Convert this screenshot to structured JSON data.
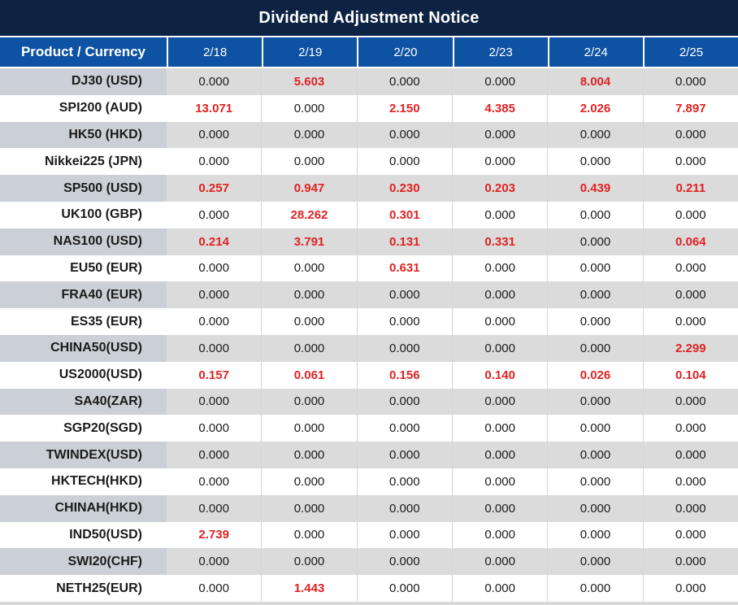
{
  "title": "Dividend Adjustment Notice",
  "colors": {
    "title_bg": "#0d2343",
    "header_bg": "#0e52a3",
    "row_gray": "#dbdbdb",
    "row_label_gray": "#cbd0d6",
    "value_red": "#e02222",
    "value_black": "#1b1b1b"
  },
  "chart_data": {
    "type": "table",
    "title": "Dividend Adjustment Notice",
    "columns": [
      "Product / Currency",
      "2/18",
      "2/19",
      "2/20",
      "2/23",
      "2/24",
      "2/25"
    ],
    "rows": [
      {
        "product": "DJ30 (USD)",
        "values": [
          "0.000",
          "5.603",
          "0.000",
          "0.000",
          "8.004",
          "0.000"
        ],
        "red": [
          false,
          true,
          false,
          false,
          true,
          false
        ]
      },
      {
        "product": "SPI200 (AUD)",
        "values": [
          "13.071",
          "0.000",
          "2.150",
          "4.385",
          "2.026",
          "7.897"
        ],
        "red": [
          true,
          false,
          true,
          true,
          true,
          true
        ]
      },
      {
        "product": "HK50 (HKD)",
        "values": [
          "0.000",
          "0.000",
          "0.000",
          "0.000",
          "0.000",
          "0.000"
        ],
        "red": [
          false,
          false,
          false,
          false,
          false,
          false
        ]
      },
      {
        "product": "Nikkei225 (JPN)",
        "values": [
          "0.000",
          "0.000",
          "0.000",
          "0.000",
          "0.000",
          "0.000"
        ],
        "red": [
          false,
          false,
          false,
          false,
          false,
          false
        ]
      },
      {
        "product": "SP500 (USD)",
        "values": [
          "0.257",
          "0.947",
          "0.230",
          "0.203",
          "0.439",
          "0.211"
        ],
        "red": [
          true,
          true,
          true,
          true,
          true,
          true
        ]
      },
      {
        "product": "UK100 (GBP)",
        "values": [
          "0.000",
          "28.262",
          "0.301",
          "0.000",
          "0.000",
          "0.000"
        ],
        "red": [
          false,
          true,
          true,
          false,
          false,
          false
        ]
      },
      {
        "product": "NAS100 (USD)",
        "values": [
          "0.214",
          "3.791",
          "0.131",
          "0.331",
          "0.000",
          "0.064"
        ],
        "red": [
          true,
          true,
          true,
          true,
          false,
          true
        ]
      },
      {
        "product": "EU50 (EUR)",
        "values": [
          "0.000",
          "0.000",
          "0.631",
          "0.000",
          "0.000",
          "0.000"
        ],
        "red": [
          false,
          false,
          true,
          false,
          false,
          false
        ]
      },
      {
        "product": "FRA40 (EUR)",
        "values": [
          "0.000",
          "0.000",
          "0.000",
          "0.000",
          "0.000",
          "0.000"
        ],
        "red": [
          false,
          false,
          false,
          false,
          false,
          false
        ]
      },
      {
        "product": "ES35 (EUR)",
        "values": [
          "0.000",
          "0.000",
          "0.000",
          "0.000",
          "0.000",
          "0.000"
        ],
        "red": [
          false,
          false,
          false,
          false,
          false,
          false
        ]
      },
      {
        "product": "CHINA50(USD)",
        "values": [
          "0.000",
          "0.000",
          "0.000",
          "0.000",
          "0.000",
          "2.299"
        ],
        "red": [
          false,
          false,
          false,
          false,
          false,
          true
        ]
      },
      {
        "product": "US2000(USD)",
        "values": [
          "0.157",
          "0.061",
          "0.156",
          "0.140",
          "0.026",
          "0.104"
        ],
        "red": [
          true,
          true,
          true,
          true,
          true,
          true
        ]
      },
      {
        "product": "SA40(ZAR)",
        "values": [
          "0.000",
          "0.000",
          "0.000",
          "0.000",
          "0.000",
          "0.000"
        ],
        "red": [
          false,
          false,
          false,
          false,
          false,
          false
        ]
      },
      {
        "product": "SGP20(SGD)",
        "values": [
          "0.000",
          "0.000",
          "0.000",
          "0.000",
          "0.000",
          "0.000"
        ],
        "red": [
          false,
          false,
          false,
          false,
          false,
          false
        ]
      },
      {
        "product": "TWINDEX(USD)",
        "values": [
          "0.000",
          "0.000",
          "0.000",
          "0.000",
          "0.000",
          "0.000"
        ],
        "red": [
          false,
          false,
          false,
          false,
          false,
          false
        ]
      },
      {
        "product": "HKTECH(HKD)",
        "values": [
          "0.000",
          "0.000",
          "0.000",
          "0.000",
          "0.000",
          "0.000"
        ],
        "red": [
          false,
          false,
          false,
          false,
          false,
          false
        ]
      },
      {
        "product": "CHINAH(HKD)",
        "values": [
          "0.000",
          "0.000",
          "0.000",
          "0.000",
          "0.000",
          "0.000"
        ],
        "red": [
          false,
          false,
          false,
          false,
          false,
          false
        ]
      },
      {
        "product": "IND50(USD)",
        "values": [
          "2.739",
          "0.000",
          "0.000",
          "0.000",
          "0.000",
          "0.000"
        ],
        "red": [
          true,
          false,
          false,
          false,
          false,
          false
        ]
      },
      {
        "product": "SWI20(CHF)",
        "values": [
          "0.000",
          "0.000",
          "0.000",
          "0.000",
          "0.000",
          "0.000"
        ],
        "red": [
          false,
          false,
          false,
          false,
          false,
          false
        ]
      },
      {
        "product": "NETH25(EUR)",
        "values": [
          "0.000",
          "1.443",
          "0.000",
          "0.000",
          "0.000",
          "0.000"
        ],
        "red": [
          false,
          true,
          false,
          false,
          false,
          false
        ]
      }
    ]
  }
}
